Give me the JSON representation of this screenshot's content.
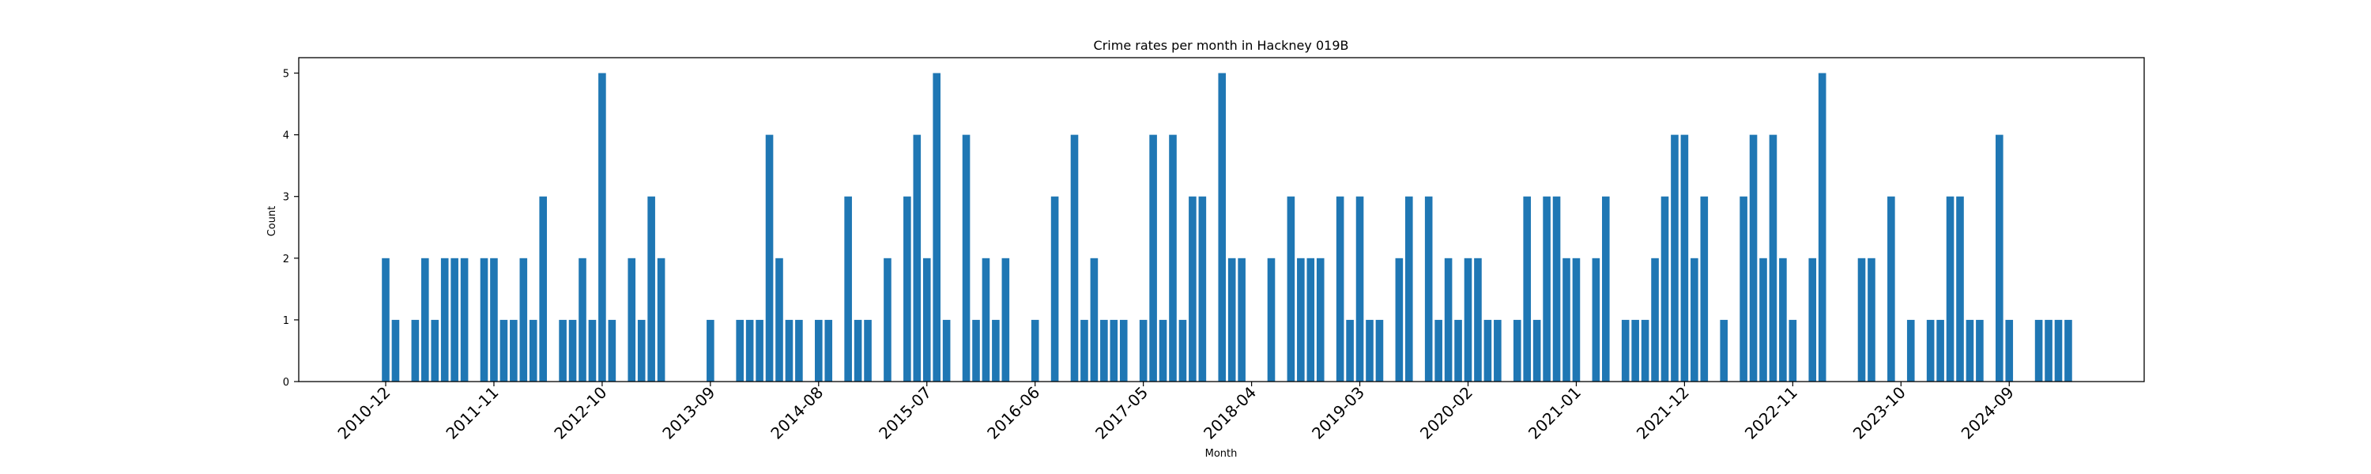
{
  "chart_data": {
    "type": "bar",
    "title": "Crime rates per month in Hackney 019B",
    "xlabel": "Month",
    "ylabel": "Count",
    "ylim": [
      0,
      5.25
    ],
    "yticks": [
      0,
      1,
      2,
      3,
      4,
      5
    ],
    "grid": false,
    "bar_color": "#1f77b4",
    "xtick_labels": [
      "2010-12",
      "2011-11",
      "2012-10",
      "2013-09",
      "2014-08",
      "2015-07",
      "2016-06",
      "2017-05",
      "2018-04",
      "2019-03",
      "2020-02",
      "2021-01",
      "2021-12",
      "2022-11",
      "2023-10",
      "2024-09"
    ],
    "series": [
      {
        "start_month": "2010-12",
        "values": [
          2,
          1,
          0,
          1,
          2,
          1,
          2,
          2,
          2,
          0,
          2,
          2,
          1,
          1,
          2,
          1,
          3,
          0,
          1,
          1,
          2,
          1,
          5,
          1,
          0,
          2,
          1,
          3,
          2,
          0,
          0,
          0,
          0,
          1,
          0,
          0,
          1,
          1,
          1,
          4,
          2,
          1,
          1,
          0,
          1,
          1,
          0,
          3,
          1,
          1,
          0,
          2,
          0,
          3,
          4,
          2,
          5,
          1,
          0,
          4,
          1,
          2,
          1,
          2,
          0,
          0,
          1,
          0,
          3,
          0,
          4,
          1,
          2,
          1,
          1,
          1,
          0,
          1,
          4,
          1,
          4,
          1,
          3,
          3,
          0,
          5,
          2,
          2,
          0,
          0,
          2,
          0,
          3,
          2,
          2,
          2,
          0,
          3,
          1,
          3,
          1,
          1,
          0,
          2,
          3,
          0,
          3,
          1,
          2,
          1,
          2,
          2,
          1,
          1,
          0,
          1,
          3,
          1,
          3,
          3,
          2,
          2,
          0,
          2,
          3,
          0,
          1,
          1,
          1,
          2,
          3,
          4,
          4,
          2,
          3,
          0,
          1,
          0,
          3,
          4,
          2,
          4,
          2,
          1,
          0,
          2,
          5,
          0,
          0,
          0,
          2,
          2,
          0,
          3,
          0,
          1,
          0,
          1,
          1,
          3,
          3,
          1,
          1,
          0,
          4,
          1,
          0,
          0,
          1,
          1,
          1,
          1
        ]
      }
    ]
  }
}
